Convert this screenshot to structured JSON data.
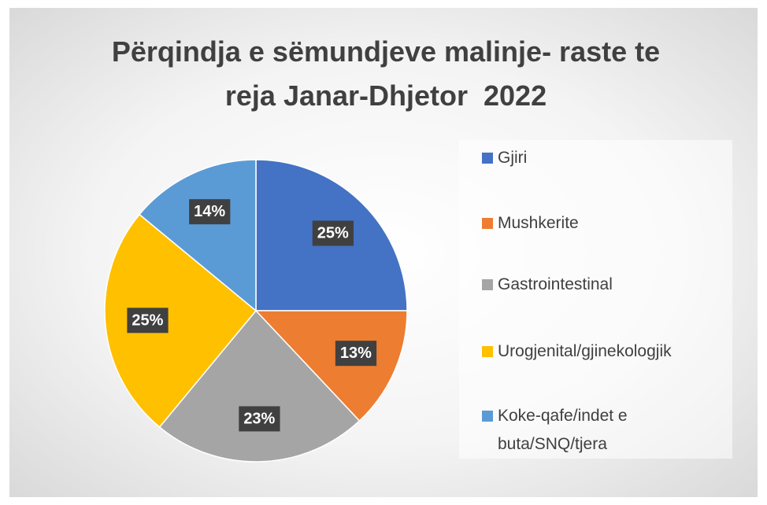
{
  "chart_data": {
    "type": "pie",
    "title": "Përqindja e sëmundjeve malinje- raste te reja Janar-Dhjetor  2022",
    "categories": [
      "Gjiri",
      "Mushkerite",
      "Gastrointestinal",
      "Urogjenital/gjinekologjik",
      "Koke-qafe/indet e buta/SNQ/tjera"
    ],
    "values": [
      25,
      13,
      23,
      25,
      14
    ],
    "value_labels": [
      "25%",
      "13%",
      "23%",
      "25%",
      "14%"
    ],
    "colors": [
      "#4472c4",
      "#ed7d31",
      "#a5a5a5",
      "#ffc000",
      "#5b9bd5"
    ],
    "legend": "right"
  }
}
